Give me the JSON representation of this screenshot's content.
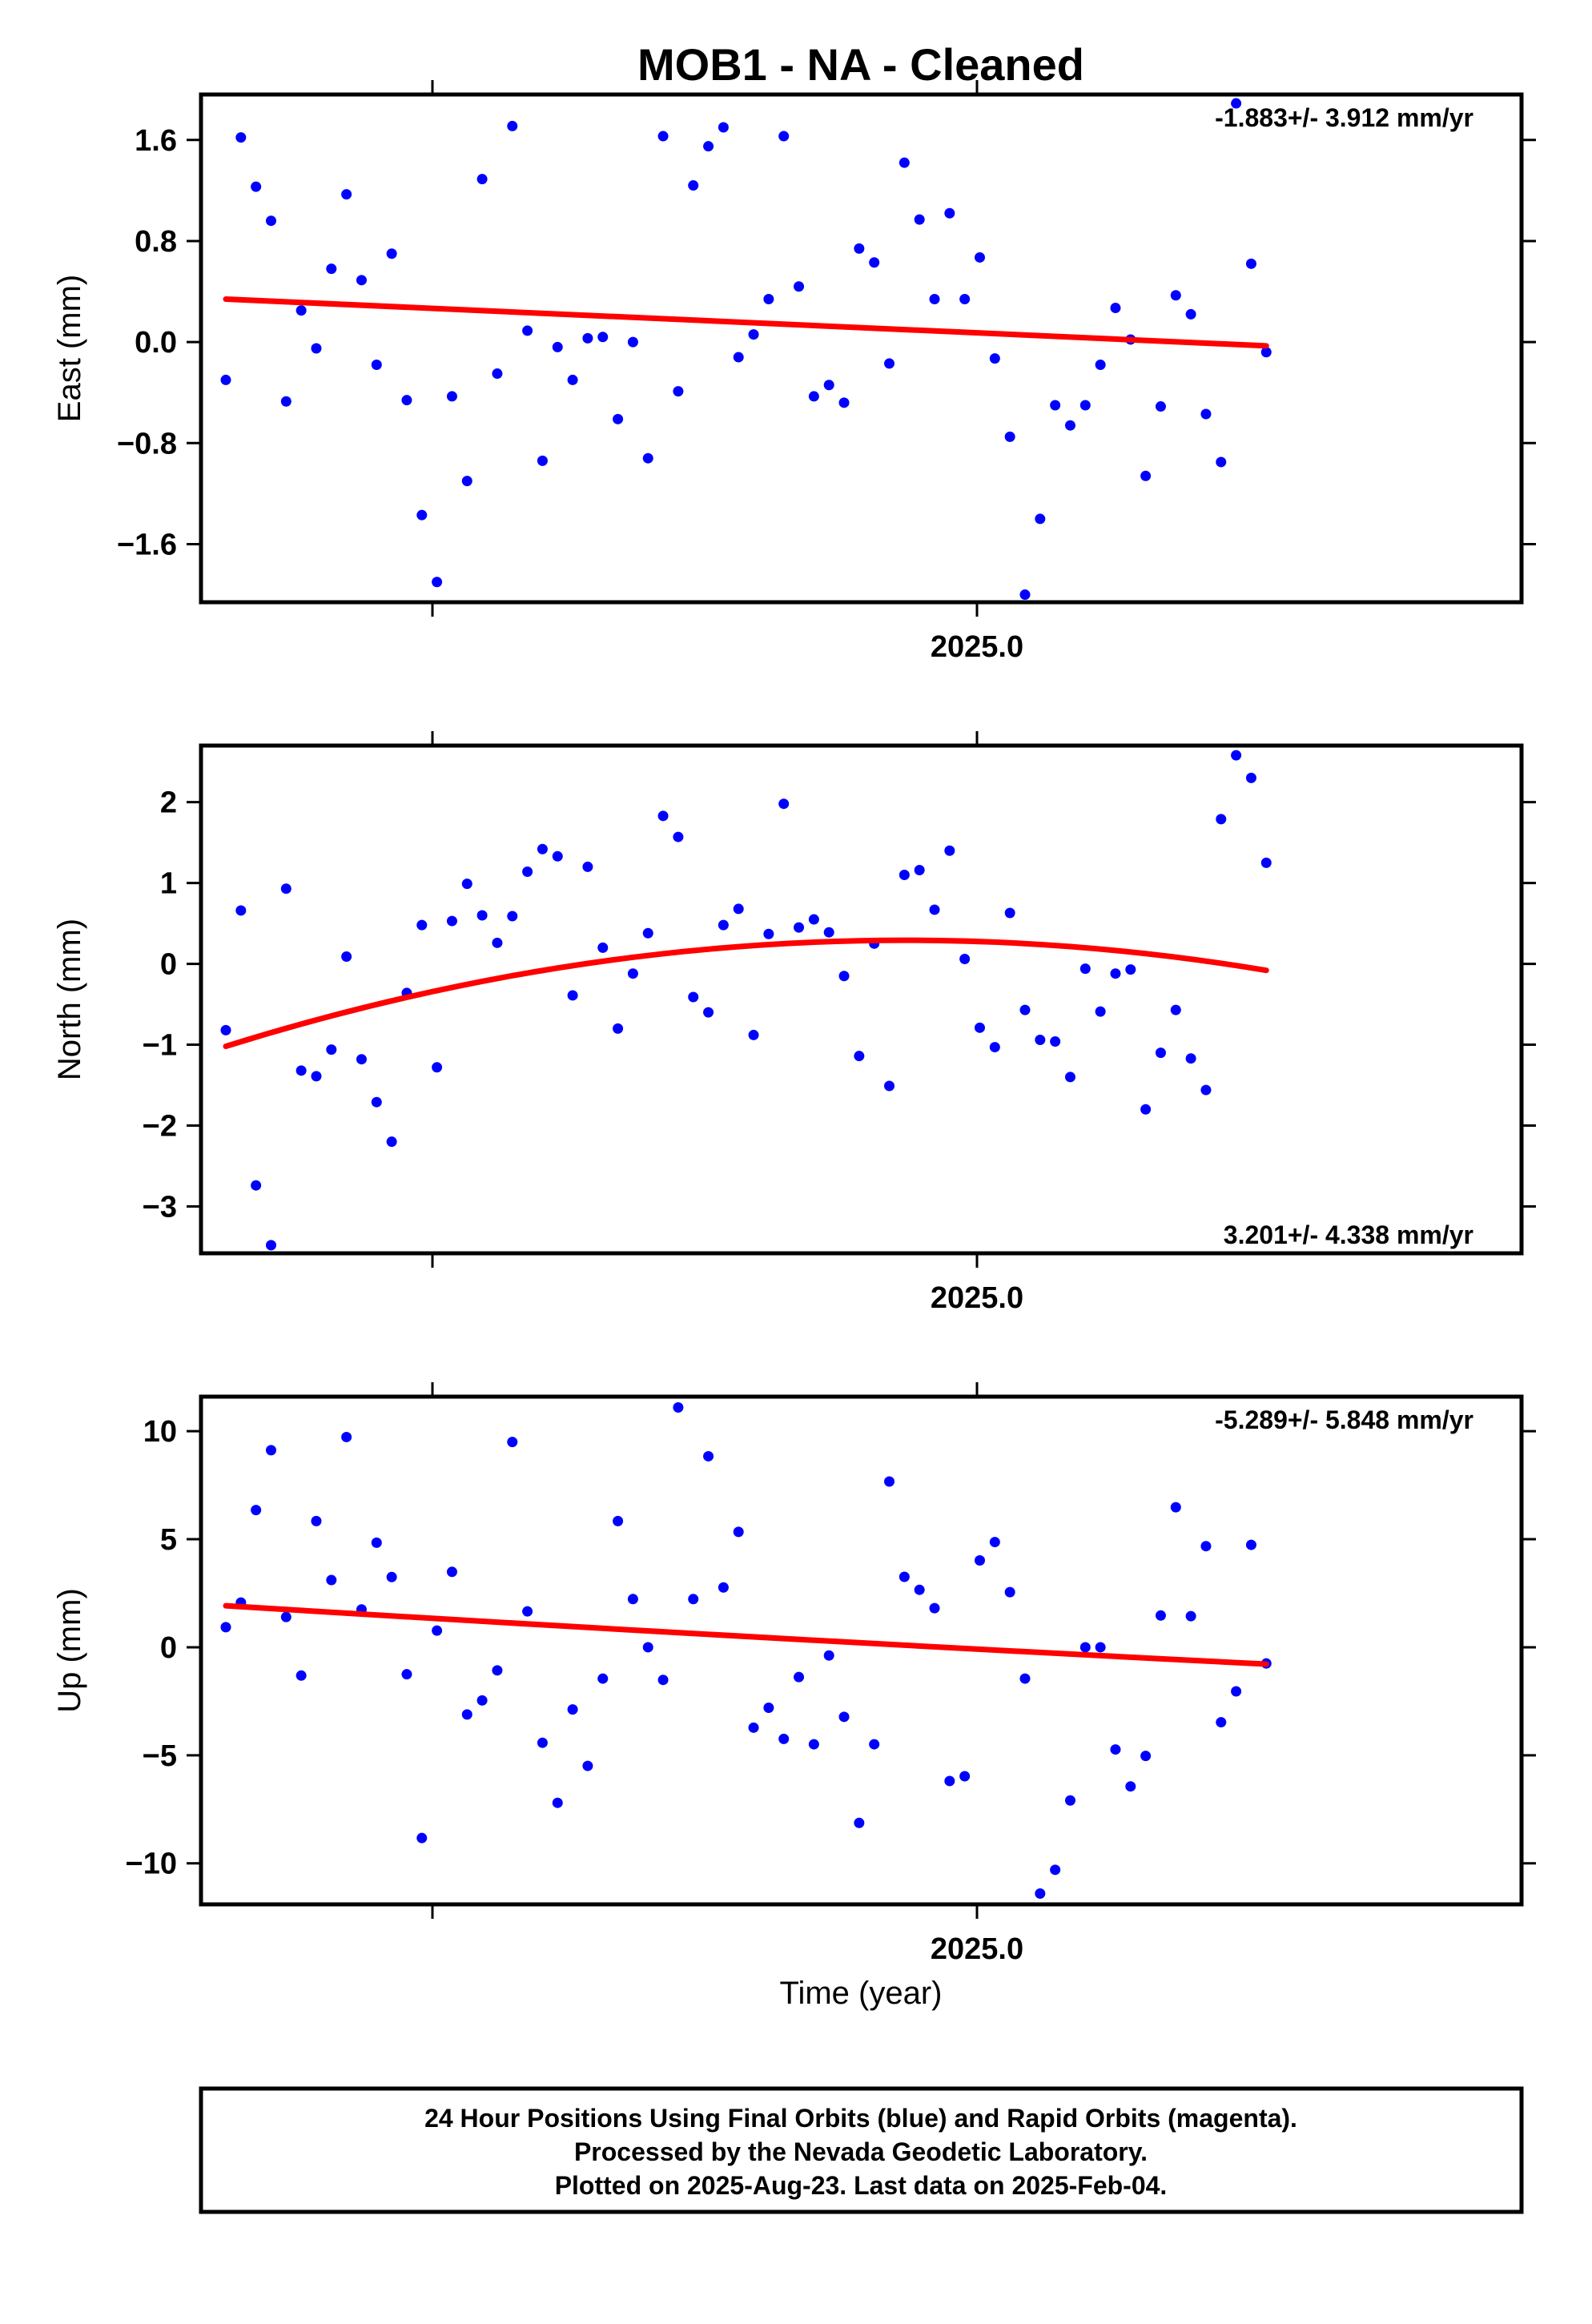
{
  "colors": {
    "final_orbits": "#0000ff",
    "rapid_orbits": "#ff00ff",
    "trend": "#ff0000",
    "frame": "#000000"
  },
  "chart_data": {
    "title": "MOB1  - NA - Cleaned",
    "xlabel": "Time (year)",
    "x_tick_label": "2025.0",
    "panels": [
      {
        "id": "east",
        "type": "scatter",
        "ylabel": "East (mm)",
        "ylim": [
          -2.06,
          1.96
        ],
        "yticks": [
          1.6,
          0.8,
          0.0,
          -0.8,
          -1.6
        ],
        "ytick_labels": [
          "1.6",
          "0.8",
          "0.0",
          "−0.8",
          "−1.6"
        ],
        "rate_text": "-1.883+/- 3.912 mm/yr",
        "rate_position": "top-right",
        "points_y": [
          -0.3,
          1.62,
          1.23,
          0.96,
          -0.47,
          0.25,
          -0.05,
          0.58,
          1.17,
          0.49,
          -0.18,
          0.7,
          -0.46,
          -1.37,
          -1.9,
          -0.43,
          -1.1,
          1.29,
          -0.25,
          1.71,
          0.09,
          -0.94,
          -0.04,
          -0.3,
          0.03,
          0.04,
          -0.61,
          0.0,
          -0.92,
          1.63,
          -0.39,
          1.24,
          1.55,
          1.7,
          -0.12,
          0.06,
          0.34,
          1.63,
          0.44,
          -0.43,
          -0.34,
          -0.48,
          0.74,
          0.63,
          -0.17,
          1.42,
          0.97,
          0.34,
          1.02,
          0.34,
          0.67,
          -0.13,
          -0.75,
          -2.0,
          -1.4,
          -0.5,
          -0.66,
          -0.5,
          -0.18,
          0.27,
          0.02,
          -1.06,
          -0.51,
          0.37,
          0.22,
          -0.57,
          -0.95,
          1.89,
          0.62,
          -0.08
        ],
        "trend": [
          0.34,
          -0.03
        ]
      },
      {
        "id": "north",
        "type": "scatter",
        "ylabel": "North (mm)",
        "ylim": [
          -3.58,
          2.7
        ],
        "yticks": [
          2,
          1,
          0,
          -1,
          -2,
          -3
        ],
        "ytick_labels": [
          "2",
          "1",
          "0",
          "−1",
          "−2",
          "−3"
        ],
        "rate_text": "3.201+/- 4.338 mm/yr",
        "rate_position": "bottom-right",
        "points_y": [
          -0.82,
          0.66,
          -2.74,
          -3.48,
          0.93,
          -1.32,
          -1.39,
          -1.06,
          0.09,
          -1.18,
          -1.71,
          -2.2,
          -0.36,
          0.48,
          -1.28,
          0.53,
          0.99,
          0.6,
          0.26,
          0.59,
          1.14,
          1.42,
          1.33,
          -0.39,
          1.2,
          0.2,
          -0.8,
          -0.12,
          0.38,
          1.83,
          1.57,
          -0.41,
          -0.6,
          0.48,
          0.68,
          -0.88,
          0.37,
          1.98,
          0.45,
          0.55,
          0.39,
          -0.15,
          -1.14,
          0.25,
          -1.51,
          1.1,
          1.16,
          0.67,
          1.4,
          0.06,
          -0.79,
          -1.03,
          0.63,
          -0.57,
          -0.94,
          -0.96,
          -1.4,
          -0.06,
          -0.59,
          -0.12,
          -0.07,
          -1.8,
          -1.1,
          -0.57,
          -1.17,
          -1.56,
          1.79,
          2.58,
          2.3,
          1.25
        ],
        "trend": [
          -1.02,
          0.22,
          -0.08
        ]
      },
      {
        "id": "up",
        "type": "scatter",
        "ylabel": "Up (mm)",
        "ylim": [
          -11.9,
          11.6
        ],
        "yticks": [
          10,
          5,
          0,
          -5,
          -10
        ],
        "ytick_labels": [
          "10",
          "5",
          "0",
          "−5",
          "−10"
        ],
        "rate_text": "-5.289+/- 5.848 mm/yr",
        "rate_position": "top-right",
        "points_y": [
          0.93,
          2.07,
          6.35,
          9.12,
          1.4,
          -1.31,
          5.84,
          3.11,
          9.73,
          1.75,
          4.84,
          3.25,
          -1.25,
          -8.83,
          0.77,
          3.49,
          -3.11,
          -2.46,
          -1.07,
          9.5,
          1.66,
          -4.42,
          -7.2,
          -2.88,
          -5.49,
          -1.45,
          5.84,
          2.23,
          0.0,
          -1.51,
          11.1,
          2.23,
          8.84,
          2.77,
          5.34,
          -3.72,
          -2.8,
          -4.24,
          -1.38,
          -4.49,
          -0.38,
          -3.22,
          -8.13,
          -4.49,
          7.67,
          3.26,
          2.66,
          1.81,
          -6.19,
          -5.97,
          4.02,
          4.87,
          2.55,
          -1.45,
          -11.4,
          -10.3,
          -7.09,
          0.0,
          0.0,
          -4.73,
          -6.44,
          -5.03,
          1.47,
          6.48,
          1.44,
          4.68,
          -3.47,
          -2.04,
          4.74,
          -0.75
        ],
        "trend": [
          1.92,
          0.5,
          -0.78
        ]
      }
    ]
  },
  "footer": {
    "line1": "24 Hour Positions Using Final Orbits (blue) and Rapid Orbits (magenta).",
    "line2": "Processed by the Nevada Geodetic Laboratory.",
    "line3": "Plotted on 2025-Aug-23. Last data on 2025-Feb-04."
  }
}
